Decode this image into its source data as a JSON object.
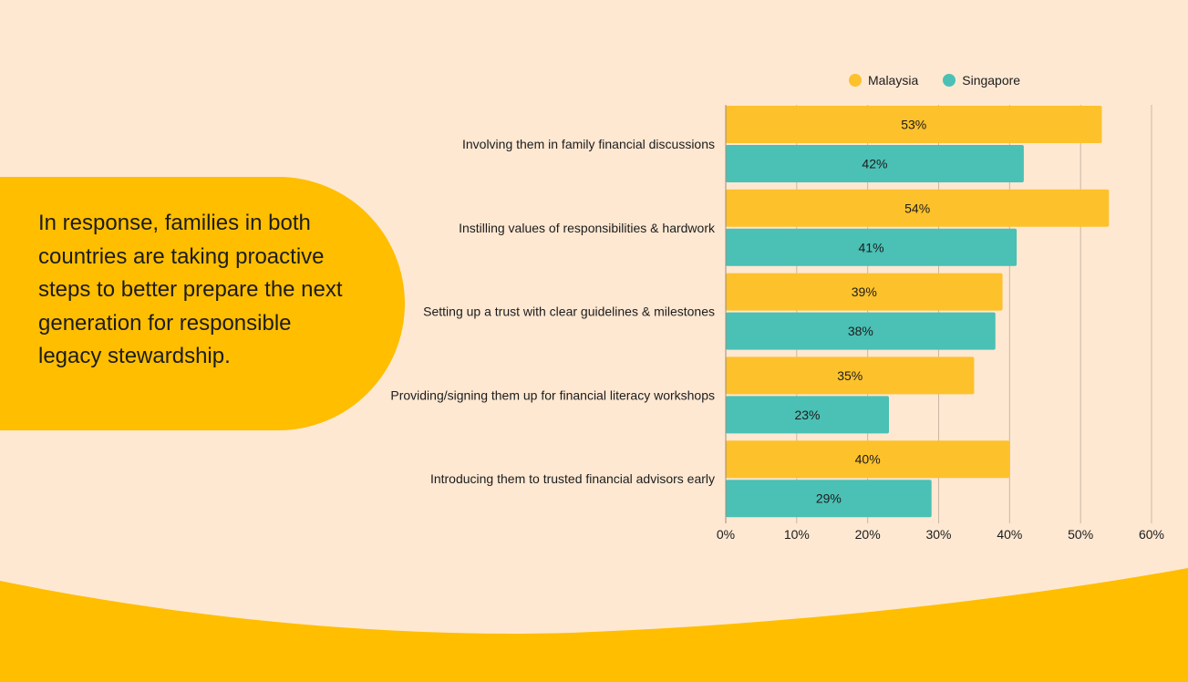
{
  "callout": {
    "text": "In response, families in both countries are taking proactive steps to better prepare the next generation for responsible legacy stewardship."
  },
  "colors": {
    "background": "#FEE8D2",
    "accent": "#FFBE00",
    "malaysia": "#FDC12B",
    "singapore": "#4BC0B5"
  },
  "chart_data": {
    "type": "bar",
    "orientation": "horizontal",
    "categories": [
      "Involving them in family financial discussions",
      "Instilling values of responsibilities & hardwork",
      "Setting up a trust with clear guidelines & milestones",
      "Providing/signing them up for financial literacy workshops",
      "Introducing them to trusted financial advisors early"
    ],
    "series": [
      {
        "name": "Malaysia",
        "values": [
          53,
          54,
          39,
          35,
          40
        ]
      },
      {
        "name": "Singapore",
        "values": [
          42,
          41,
          38,
          23,
          29
        ]
      }
    ],
    "xlim": [
      0,
      60
    ],
    "xticks": [
      0,
      10,
      20,
      30,
      40,
      50,
      60
    ],
    "tick_suffix": "%",
    "legend": "top",
    "grid": true
  }
}
